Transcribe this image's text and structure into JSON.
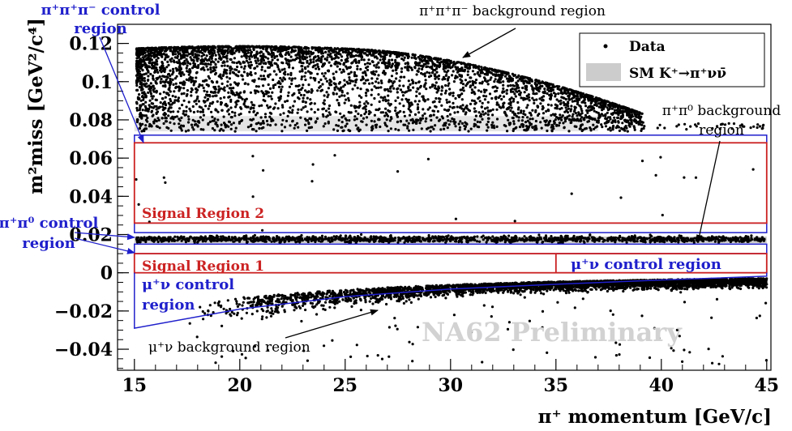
{
  "chart_data": {
    "type": "scatter",
    "xlabel": "π⁺ momentum [GeV/c]",
    "ylabel": "m²miss [GeV²/c⁴]",
    "xlim": [
      14.2,
      45.2
    ],
    "ylim": [
      -0.051,
      0.13
    ],
    "x_ticks": [
      "15",
      "20",
      "25",
      "30",
      "35",
      "40",
      "45"
    ],
    "y_ticks": [
      "−0.04",
      "−0.02",
      "0",
      "0.02",
      "0.04",
      "0.06",
      "0.08",
      "0.1",
      "0.12"
    ],
    "x_tick_values": [
      15,
      20,
      25,
      30,
      35,
      40,
      45
    ],
    "y_tick_values": [
      -0.04,
      -0.02,
      0,
      0.02,
      0.04,
      0.06,
      0.08,
      0.1,
      0.12
    ],
    "legend": {
      "placement": "top-right",
      "data_label": "Data",
      "sm_label": "SM K⁺→π⁺νν̄"
    },
    "watermark": "NA62 Preliminary",
    "signal_regions": [
      {
        "name": "Signal Region 1",
        "x": [
          15,
          45
        ],
        "y": [
          0,
          0.01
        ]
      },
      {
        "name": "Signal Region 2",
        "x": [
          15,
          45
        ],
        "y": [
          0.026,
          0.068
        ]
      }
    ],
    "control_regions": [
      {
        "name": "π⁺π⁺π⁻ control region",
        "x": [
          15,
          45
        ],
        "y": [
          0.068,
          0.072
        ]
      },
      {
        "name": "π⁺π⁰ control region",
        "x": [
          15,
          45
        ],
        "y": [
          0.01,
          0.015
        ]
      },
      {
        "name": "π⁺π⁰ control region",
        "x": [
          15,
          45
        ],
        "y": [
          0.021,
          0.026
        ]
      },
      {
        "name": "μ⁺ν control region",
        "x": [
          35,
          45
        ],
        "y": [
          0,
          0.01
        ]
      }
    ],
    "mu_nu_control_region": {
      "name": "μ⁺ν control region",
      "upper_y": 0,
      "lower_x": [
        15,
        20,
        25,
        30,
        35,
        40,
        45
      ],
      "lower_y": [
        -0.029,
        -0.019,
        -0.0125,
        -0.0085,
        -0.006,
        -0.0038,
        -0.0018
      ]
    },
    "background_regions": [
      {
        "name": "π⁺π⁺π⁻ background region",
        "x": [
          15,
          45
        ],
        "y_min": 0.075
      },
      {
        "name": "π⁺π⁰ background region",
        "x": [
          15,
          45
        ],
        "y": [
          0.015,
          0.021
        ]
      },
      {
        "name": "μ⁺ν background region",
        "x": [
          15,
          45
        ],
        "y_max": 0
      }
    ]
  },
  "labels": {
    "top_control_line1": "π⁺π⁺π⁻ control",
    "top_control_line2": "region",
    "top_background": "π⁺π⁺π⁻ background region",
    "pipi0_bg_line1": "π⁺π⁰ background",
    "pipi0_bg_line2": "region",
    "pipi0_ctrl_line1": "π⁺π⁰ control",
    "pipi0_ctrl_line2": "region",
    "signal_region_2": "Signal Region 2",
    "signal_region_1": "Signal Region 1",
    "munu_ctrl_right": "μ⁺ν control region",
    "munu_ctrl_left_line1": "μ⁺ν control",
    "munu_ctrl_left_line2": "region",
    "munu_bg": "μ⁺ν background region"
  },
  "colors": {
    "signal": "#cc2222",
    "control": "#1f1fcc",
    "sm_fill": "#cccccc",
    "data": "#000000",
    "watermark": "#d2d2d2"
  }
}
